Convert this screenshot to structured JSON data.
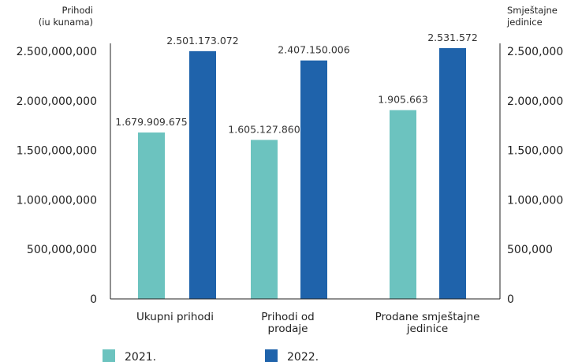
{
  "chart_data": {
    "type": "bar",
    "categories": [
      "Ukupni prihodi",
      "Prihodi od prodaje",
      "Prodane smještajne jedinice"
    ],
    "category_lines": [
      [
        "Ukupni prihodi"
      ],
      [
        "Prihodi od",
        "prodaje"
      ],
      [
        "Prodane smještajne",
        "jedinice"
      ]
    ],
    "series": [
      {
        "name": "2021.",
        "color": "#6cc3bf",
        "values": [
          1679909675,
          1605127860,
          1905663
        ],
        "labels": [
          "1.679.909.675",
          "1.605.127.860",
          "1.905.663"
        ],
        "plot_values": [
          1679909675,
          1605127860,
          1905663000
        ]
      },
      {
        "name": "2022.",
        "color": "#1f63ab",
        "values": [
          2501173072,
          2407150006,
          2531572
        ],
        "labels": [
          "2.501.173.072",
          "2.407.150.006",
          "2.531.572"
        ],
        "plot_values": [
          2501173072,
          2407150006,
          2531572000
        ]
      }
    ],
    "ylim": [
      0,
      2500000000
    ],
    "yticks": [
      0,
      500000000,
      1000000000,
      1500000000,
      2000000000,
      2500000000
    ],
    "ytick_labels_left": [
      "0",
      "500,000,000",
      "1.000,000,000",
      "1.500,000,000",
      "2.000,000,000",
      "2.500,000,000"
    ],
    "ytick_labels_right": [
      "0",
      "500,000",
      "1.000,000",
      "1.500,000",
      "2.000,000",
      "2.500,000"
    ],
    "ylabel_left": [
      "Prihodi",
      "(iu kunama)"
    ],
    "ylabel_right": [
      "Smještajne",
      "jedinice"
    ],
    "secondary_axis_series_index": 2,
    "grid": false,
    "legend_position": "bottom"
  }
}
